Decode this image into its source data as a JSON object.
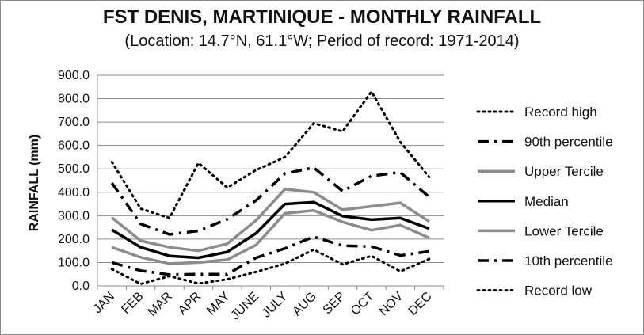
{
  "chart_data": {
    "type": "line",
    "title": "FST DENIS, MARTINIQUE - MONTHLY RAINFALL",
    "subtitle": "(Location: 14.7°N, 61.1°W; Period of record: 1971-2014)",
    "xlabel": "",
    "ylabel": "RAINFALL (mm)",
    "ylim": [
      0,
      900
    ],
    "yticks": [
      "0.0",
      "100.0",
      "200.0",
      "300.0",
      "400.0",
      "500.0",
      "600.0",
      "700.0",
      "800.0",
      "900.0"
    ],
    "grid": "horizontal",
    "legend_position": "right",
    "categories": [
      "JAN",
      "FEB",
      "MAR",
      "APR",
      "MAY",
      "JUNE",
      "JULY",
      "AUG",
      "SEP",
      "OCT",
      "NOV",
      "DEC"
    ],
    "series": [
      {
        "name": "Record high",
        "style": "dotted",
        "color": "#000000",
        "values": [
          530,
          330,
          290,
          525,
          420,
          495,
          550,
          695,
          660,
          830,
          615,
          465
        ]
      },
      {
        "name": "90th percentile",
        "style": "dashdot",
        "color": "#000000",
        "values": [
          440,
          265,
          220,
          235,
          285,
          365,
          480,
          505,
          405,
          470,
          485,
          380
        ]
      },
      {
        "name": "Upper Tercile",
        "style": "solid",
        "color": "#8c8c8c",
        "values": [
          292,
          193,
          165,
          150,
          180,
          280,
          413,
          400,
          325,
          340,
          355,
          275
        ]
      },
      {
        "name": "Median",
        "style": "solid",
        "color": "#000000",
        "values": [
          240,
          165,
          128,
          120,
          145,
          225,
          350,
          358,
          298,
          283,
          290,
          245
        ]
      },
      {
        "name": "Lower Tercile",
        "style": "solid",
        "color": "#8c8c8c",
        "values": [
          165,
          122,
          95,
          100,
          112,
          175,
          310,
          322,
          273,
          238,
          260,
          205
        ]
      },
      {
        "name": "10th percentile",
        "style": "dashdot",
        "color": "#000000",
        "values": [
          100,
          65,
          48,
          50,
          50,
          120,
          160,
          210,
          172,
          168,
          130,
          148
        ]
      },
      {
        "name": "Record low",
        "style": "dotted",
        "color": "#000000",
        "values": [
          72,
          8,
          42,
          10,
          28,
          60,
          95,
          155,
          92,
          128,
          62,
          115
        ]
      }
    ]
  }
}
